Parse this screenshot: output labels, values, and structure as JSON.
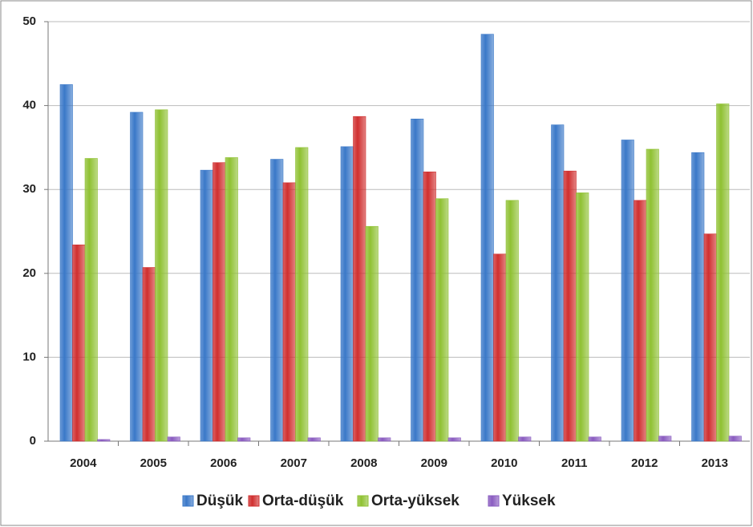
{
  "chart_data": {
    "type": "bar",
    "categories": [
      "2004",
      "2005",
      "2006",
      "2007",
      "2008",
      "2009",
      "2010",
      "2011",
      "2012",
      "2013"
    ],
    "series": [
      {
        "name": "Düşük",
        "color": "#3a78c8",
        "values": [
          42.5,
          39.2,
          32.3,
          33.6,
          35.1,
          38.4,
          48.5,
          37.7,
          35.9,
          34.4
        ]
      },
      {
        "name": "Orta-düşük",
        "color": "#d02f2f",
        "values": [
          23.4,
          20.7,
          33.2,
          30.8,
          38.7,
          32.1,
          22.3,
          32.2,
          28.7,
          24.7
        ]
      },
      {
        "name": "Orta-yüksek",
        "color": "#8fc132",
        "values": [
          33.7,
          39.5,
          33.8,
          35.0,
          25.6,
          28.9,
          28.7,
          29.6,
          34.8,
          40.2
        ]
      },
      {
        "name": "Yüksek",
        "color": "#8a5cc0",
        "values": [
          0.2,
          0.5,
          0.4,
          0.4,
          0.4,
          0.4,
          0.5,
          0.5,
          0.6,
          0.6
        ]
      }
    ],
    "ylim": [
      0,
      50
    ],
    "yticks": [
      0,
      10,
      20,
      30,
      40,
      50
    ],
    "grid": true,
    "legend": "bottom"
  }
}
